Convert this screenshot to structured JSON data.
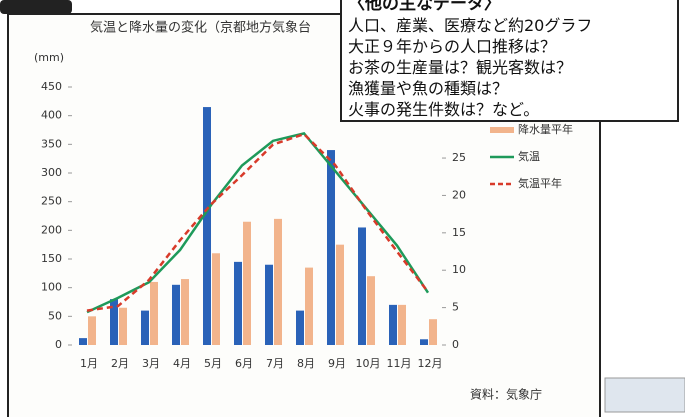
{
  "chart_data": {
    "type": "bar-line",
    "title": "気温と降水量の変化（京都地方気象台",
    "y_label": "(mm)",
    "source": "資料：気象庁",
    "categories": [
      "1月",
      "2月",
      "3月",
      "4月",
      "5月",
      "6月",
      "7月",
      "8月",
      "9月",
      "10月",
      "11月",
      "12月"
    ],
    "series": [
      {
        "type": "bar",
        "color": "#2a62b8",
        "values": [
          12,
          80,
          60,
          105,
          415,
          145,
          140,
          60,
          340,
          205,
          70,
          10
        ]
      },
      {
        "name": "降水量平年",
        "type": "bar",
        "color": "#f2b48c",
        "values": [
          50,
          65,
          110,
          115,
          160,
          215,
          220,
          135,
          175,
          120,
          70,
          45
        ]
      },
      {
        "name": "気温",
        "type": "line",
        "axis": "y2",
        "color": "#1e9a5a",
        "values": [
          4.4,
          6.3,
          8.4,
          12.7,
          18.7,
          24,
          27.3,
          28.3,
          23.3,
          18.3,
          13.3,
          7
        ]
      },
      {
        "name": "気温平年",
        "type": "line",
        "dashed": true,
        "axis": "y2",
        "color": "#d83a2a",
        "values": [
          4.6,
          5.2,
          8.7,
          14,
          18.8,
          22.7,
          26.8,
          28.2,
          24.1,
          18.1,
          12.5,
          7.1
        ]
      }
    ],
    "ylim": [
      0,
      450
    ],
    "yticks": [
      0,
      50,
      100,
      150,
      200,
      250,
      300,
      350,
      400,
      450
    ],
    "y2lim": [
      0,
      34.5
    ],
    "y2ticks": [
      0,
      5,
      10,
      15,
      20,
      25
    ]
  },
  "overlay": {
    "heading": "〈他の主なデータ〉",
    "lines": [
      "人口、産業、医療など約20グラフ",
      "大正９年からの人口推移は？",
      "お茶の生産量は？観光客数は？",
      "漁獲量や魚の種類は？",
      "火事の発生件数は？など。"
    ]
  }
}
